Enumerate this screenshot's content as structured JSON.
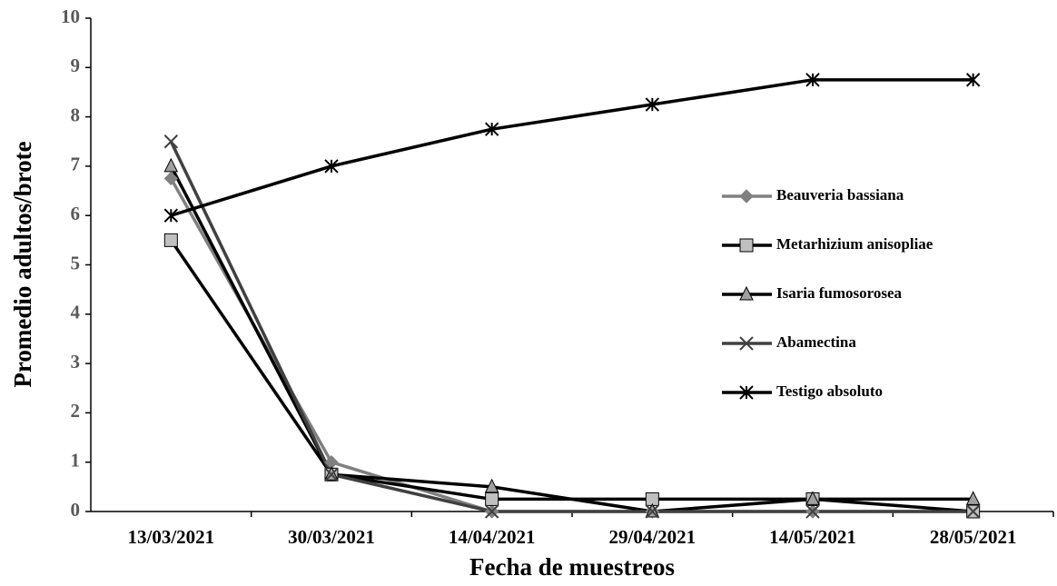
{
  "chart_data": {
    "type": "line",
    "x_label": "Fecha de muestreos",
    "y_label": "Promedio adultos/brote",
    "categories": [
      "13/03/2021",
      "30/03/2021",
      "14/04/2021",
      "29/04/2021",
      "14/05/2021",
      "28/05/2021"
    ],
    "series": [
      {
        "name": "Beauveria bassiana",
        "color": "#808080",
        "marker_color": "#808080",
        "marker": "diamond",
        "values": [
          6.75,
          1.0,
          0,
          0,
          0,
          0
        ]
      },
      {
        "name": "Metarhizium anisopliae",
        "color": "#000000",
        "marker_color": "#c0c0c0",
        "marker": "square",
        "values": [
          5.5,
          0.75,
          0.25,
          0.25,
          0.25,
          0
        ]
      },
      {
        "name": "Isaria fumosorosea",
        "color": "#000000",
        "marker_color": "#a0a0a0",
        "marker": "triangle",
        "values": [
          7.0,
          0.75,
          0.5,
          0,
          0.25,
          0.25
        ]
      },
      {
        "name": "Abamectina",
        "color": "#404040",
        "marker_color": "#404040",
        "marker": "x",
        "values": [
          7.5,
          0.75,
          0,
          0,
          0,
          0
        ]
      },
      {
        "name": "Testigo absoluto",
        "color": "#000000",
        "marker_color": "#000000",
        "marker": "star",
        "values": [
          6.0,
          7.0,
          7.75,
          8.25,
          8.75,
          8.75
        ]
      }
    ],
    "ylim": [
      0,
      10
    ],
    "yticks": [
      0,
      1,
      2,
      3,
      4,
      5,
      6,
      7,
      8,
      9,
      10
    ],
    "legend": "right"
  }
}
